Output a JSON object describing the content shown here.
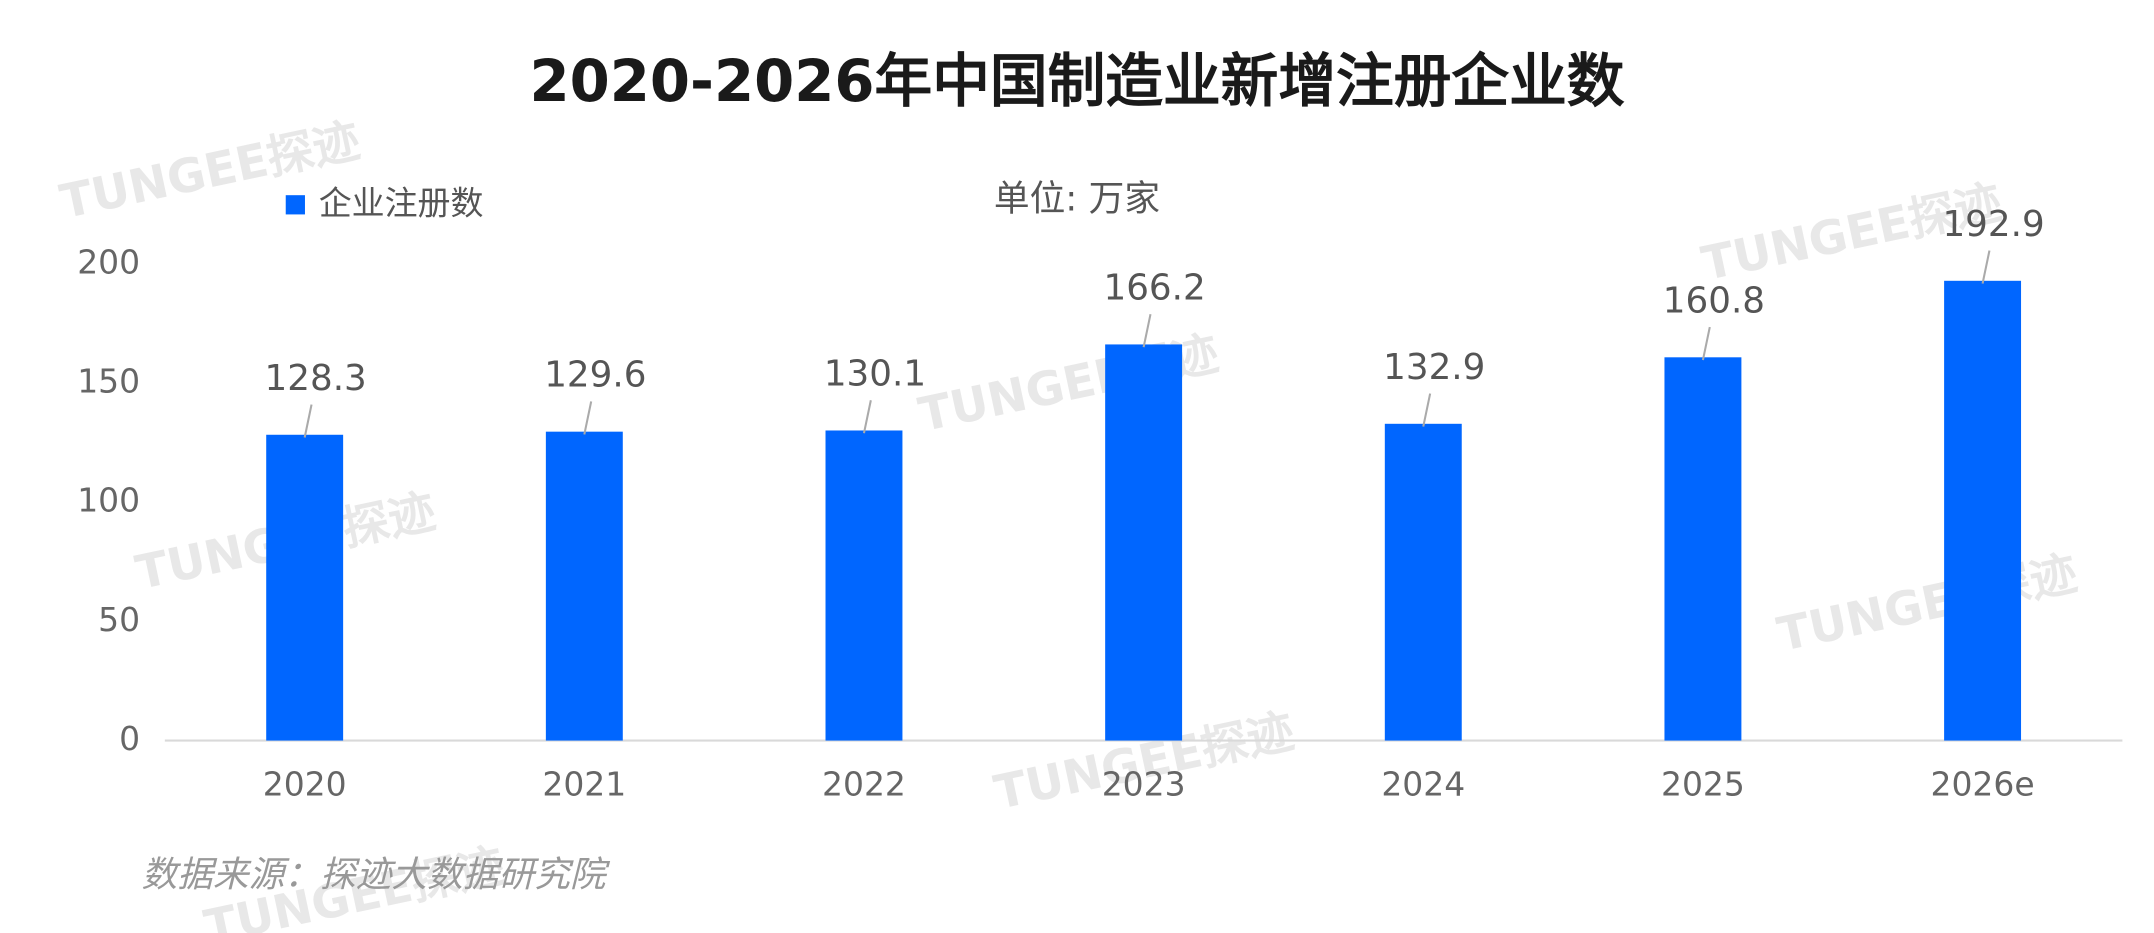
{
  "chart_data": {
    "type": "bar",
    "title": "2020-2026年中国制造业新增注册企业数",
    "unit_label": "单位: 万家",
    "source": "数据来源：探迹大数据研究院",
    "watermark": "TUNGEE探迹",
    "categories": [
      "2020",
      "2021",
      "2022",
      "2023",
      "2024",
      "2025",
      "2026e"
    ],
    "series": [
      {
        "name": "企业注册数",
        "color": "#0066ff",
        "values": [
          128.3,
          129.6,
          130.1,
          166.2,
          132.9,
          160.8,
          192.9
        ]
      }
    ],
    "ylim": [
      0,
      200
    ],
    "yticks": [
      0,
      50,
      100,
      150,
      200
    ],
    "grid": false,
    "legend": "top-left"
  }
}
